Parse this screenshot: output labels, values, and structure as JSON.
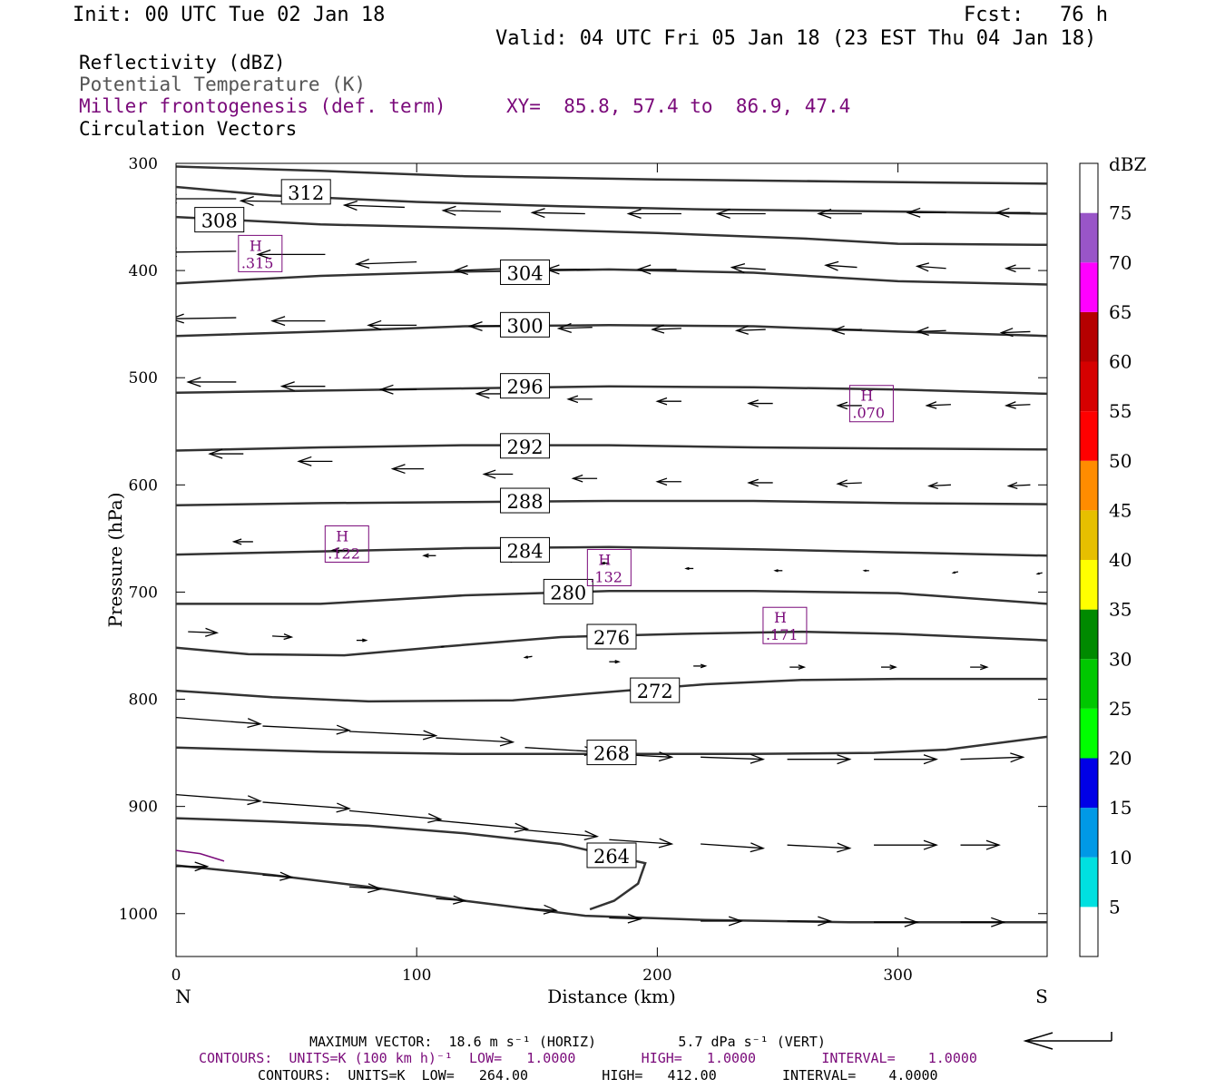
{
  "header": {
    "init": "Init: 00 UTC Tue 02 Jan 18",
    "fcst": "Fcst:   76 h",
    "valid": "Valid: 04 UTC Fri 05 Jan 18 (23 EST Thu 04 Jan 18)",
    "field_reflectivity": "Reflectivity (dBZ)",
    "field_theta": "Potential Temperature (K)",
    "field_frontogenesis": "Miller frontogenesis (def. term)",
    "xy": "XY=  85.8, 57.4 to  86.9, 47.4",
    "field_vectors": "Circulation Vectors"
  },
  "footer": {
    "max_vector": "MAXIMUM VECTOR:  18.6 m s⁻¹ (HORIZ)          5.7 dPa s⁻¹ (VERT)",
    "contours_purple": "CONTOURS:  UNITS=K (100 km h)⁻¹  LOW=   1.0000        HIGH=   1.0000        INTERVAL=    1.0000",
    "contours_black": "CONTOURS:  UNITS=K  LOW=   264.00         HIGH=   412.00        INTERVAL=    4.0000"
  },
  "colors": {
    "contour": "#333333",
    "frontogenesis": "#7a0a7a",
    "axis": "#000000"
  },
  "colorbar": {
    "unit": "dBZ",
    "levels": [
      5,
      10,
      15,
      20,
      25,
      30,
      35,
      40,
      45,
      50,
      55,
      60,
      65,
      70,
      75
    ],
    "colors": [
      "#ffffff",
      "#00e0e0",
      "#0099e6",
      "#0000e6",
      "#00ff00",
      "#00c800",
      "#008a00",
      "#ffff00",
      "#e6bf00",
      "#ff8c00",
      "#ff0000",
      "#d60000",
      "#b50000",
      "#ff00ff",
      "#9955c8",
      "#ffffff"
    ]
  },
  "chart_data": {
    "type": "cross-section",
    "xlabel": "Distance (km)",
    "ylabel": "Pressure (hPa)",
    "xlim": [
      0,
      362
    ],
    "ylim": [
      1040,
      300
    ],
    "x_ticks": [
      "0",
      "100",
      "200",
      "300"
    ],
    "y_ticks": [
      "300",
      "400",
      "500",
      "600",
      "700",
      "800",
      "900",
      "1000"
    ],
    "x_end_labels": {
      "left": "N",
      "right": "S"
    },
    "theta_contours": [
      {
        "label": "312",
        "label_at": [
          54,
          327
        ],
        "points": [
          [
            0,
            303
          ],
          [
            60,
            307
          ],
          [
            120,
            312
          ],
          [
            200,
            315
          ],
          [
            280,
            317
          ],
          [
            362,
            319
          ]
        ]
      },
      {
        "label": "308",
        "label_at": [
          18,
          353
        ],
        "points": [
          [
            0,
            322
          ],
          [
            40,
            330
          ],
          [
            100,
            336
          ],
          [
            160,
            340
          ],
          [
            220,
            343
          ],
          [
            300,
            345
          ],
          [
            362,
            347
          ]
        ]
      },
      {
        "label": "",
        "label_at": null,
        "points": [
          [
            0,
            350
          ],
          [
            60,
            357
          ],
          [
            140,
            361
          ],
          [
            200,
            365
          ],
          [
            260,
            370
          ],
          [
            300,
            375
          ],
          [
            362,
            376
          ]
        ]
      },
      {
        "label": "304",
        "label_at": [
          145,
          402
        ],
        "points": [
          [
            0,
            412
          ],
          [
            60,
            405
          ],
          [
            120,
            401
          ],
          [
            180,
            399
          ],
          [
            240,
            402
          ],
          [
            300,
            410
          ],
          [
            362,
            413
          ]
        ]
      },
      {
        "label": "300",
        "label_at": [
          145,
          451
        ],
        "points": [
          [
            0,
            461
          ],
          [
            60,
            457
          ],
          [
            120,
            452
          ],
          [
            180,
            451
          ],
          [
            240,
            452
          ],
          [
            300,
            457
          ],
          [
            362,
            461
          ]
        ]
      },
      {
        "label": "296",
        "label_at": [
          145,
          508
        ],
        "points": [
          [
            0,
            514
          ],
          [
            60,
            512
          ],
          [
            120,
            510
          ],
          [
            180,
            508
          ],
          [
            240,
            509
          ],
          [
            300,
            511
          ],
          [
            362,
            515
          ]
        ]
      },
      {
        "label": "292",
        "label_at": [
          145,
          564
        ],
        "points": [
          [
            0,
            568
          ],
          [
            60,
            565
          ],
          [
            120,
            563
          ],
          [
            180,
            563
          ],
          [
            240,
            565
          ],
          [
            300,
            566
          ],
          [
            362,
            567
          ]
        ]
      },
      {
        "label": "288",
        "label_at": [
          145,
          615
        ],
        "points": [
          [
            0,
            619
          ],
          [
            60,
            617
          ],
          [
            120,
            616
          ],
          [
            180,
            615
          ],
          [
            240,
            615
          ],
          [
            300,
            617
          ],
          [
            362,
            618
          ]
        ]
      },
      {
        "label": "284",
        "label_at": [
          145,
          661
        ],
        "points": [
          [
            0,
            665
          ],
          [
            60,
            662
          ],
          [
            120,
            659
          ],
          [
            180,
            658
          ],
          [
            240,
            660
          ],
          [
            300,
            663
          ],
          [
            362,
            666
          ]
        ]
      },
      {
        "label": "280",
        "label_at": [
          163,
          700
        ],
        "points": [
          [
            0,
            711
          ],
          [
            60,
            711
          ],
          [
            120,
            703
          ],
          [
            180,
            699
          ],
          [
            240,
            699
          ],
          [
            300,
            701
          ],
          [
            362,
            711
          ]
        ]
      },
      {
        "label": "276",
        "label_at": [
          181,
          742
        ],
        "points": [
          [
            0,
            752
          ],
          [
            30,
            758
          ],
          [
            70,
            759
          ],
          [
            110,
            751
          ],
          [
            160,
            742
          ],
          [
            210,
            739
          ],
          [
            260,
            737
          ],
          [
            300,
            739
          ],
          [
            362,
            745
          ]
        ]
      },
      {
        "label": "272",
        "label_at": [
          199,
          792
        ],
        "points": [
          [
            0,
            792
          ],
          [
            40,
            798
          ],
          [
            80,
            802
          ],
          [
            140,
            801
          ],
          [
            170,
            795
          ],
          [
            220,
            786
          ],
          [
            260,
            782
          ],
          [
            300,
            781
          ],
          [
            362,
            781
          ]
        ]
      },
      {
        "label": "268",
        "label_at": [
          181,
          850
        ],
        "points": [
          [
            0,
            845
          ],
          [
            60,
            849
          ],
          [
            120,
            851
          ],
          [
            180,
            851
          ],
          [
            240,
            851
          ],
          [
            290,
            850
          ],
          [
            320,
            847
          ],
          [
            362,
            835
          ]
        ]
      },
      {
        "label": "264",
        "label_at": [
          181,
          946
        ],
        "points": [
          [
            0,
            911
          ],
          [
            40,
            914
          ],
          [
            80,
            918
          ],
          [
            120,
            925
          ],
          [
            160,
            935
          ],
          [
            181,
            946
          ],
          [
            195,
            953
          ],
          [
            192,
            972
          ],
          [
            182,
            988
          ],
          [
            172,
            996
          ]
        ]
      },
      {
        "label": "",
        "label_at": null,
        "points": [
          [
            0,
            955
          ],
          [
            40,
            964
          ],
          [
            80,
            975
          ],
          [
            120,
            988
          ],
          [
            170,
            1002
          ],
          [
            220,
            1006
          ],
          [
            280,
            1008
          ],
          [
            362,
            1008
          ]
        ]
      }
    ],
    "frontogenesis_maxima": [
      {
        "label": "H",
        "value": ".315",
        "x": 35,
        "p": 385
      },
      {
        "label": "H",
        "value": ".070",
        "x": 289,
        "p": 525
      },
      {
        "label": "H",
        "value": ".122",
        "x": 71,
        "p": 656
      },
      {
        "label": "H",
        "value": ".132",
        "x": 180,
        "p": 678
      },
      {
        "label": "H",
        "value": ".171",
        "x": 253,
        "p": 732
      }
    ],
    "frontogenesis_contours": [
      {
        "points": [
          [
            0,
            941
          ],
          [
            10,
            944
          ],
          [
            20,
            951
          ]
        ]
      }
    ],
    "circulation_vectors": [
      {
        "x": 25,
        "p": 333,
        "dx": -30,
        "dp": 0
      },
      {
        "x": 55,
        "p": 336,
        "dx": -28,
        "dp": -1
      },
      {
        "x": 95,
        "p": 341,
        "dx": -25,
        "dp": -2
      },
      {
        "x": 135,
        "p": 345,
        "dx": -24,
        "dp": -1
      },
      {
        "x": 170,
        "p": 347,
        "dx": -22,
        "dp": -1
      },
      {
        "x": 210,
        "p": 347,
        "dx": -22,
        "dp": 0
      },
      {
        "x": 245,
        "p": 347,
        "dx": -20,
        "dp": 0
      },
      {
        "x": 285,
        "p": 347,
        "dx": -18,
        "dp": 0
      },
      {
        "x": 320,
        "p": 346,
        "dx": -16,
        "dp": 0
      },
      {
        "x": 355,
        "p": 346,
        "dx": -14,
        "dp": 0
      },
      {
        "x": 25,
        "p": 382,
        "dx": -30,
        "dp": 1
      },
      {
        "x": 62,
        "p": 385,
        "dx": -28,
        "dp": 0
      },
      {
        "x": 100,
        "p": 392,
        "dx": -25,
        "dp": 2
      },
      {
        "x": 138,
        "p": 398,
        "dx": -22,
        "dp": 2
      },
      {
        "x": 172,
        "p": 399,
        "dx": -18,
        "dp": 0
      },
      {
        "x": 208,
        "p": 399,
        "dx": -16,
        "dp": 0
      },
      {
        "x": 245,
        "p": 399,
        "dx": -14,
        "dp": -2
      },
      {
        "x": 283,
        "p": 397,
        "dx": -13,
        "dp": -2
      },
      {
        "x": 320,
        "p": 398,
        "dx": -12,
        "dp": -2
      },
      {
        "x": 355,
        "p": 398,
        "dx": -10,
        "dp": 0
      },
      {
        "x": 25,
        "p": 444,
        "dx": -27,
        "dp": 1
      },
      {
        "x": 62,
        "p": 447,
        "dx": -22,
        "dp": 0
      },
      {
        "x": 100,
        "p": 451,
        "dx": -20,
        "dp": 0
      },
      {
        "x": 138,
        "p": 452,
        "dx": -16,
        "dp": 0
      },
      {
        "x": 173,
        "p": 453,
        "dx": -14,
        "dp": 1
      },
      {
        "x": 210,
        "p": 454,
        "dx": -12,
        "dp": 1
      },
      {
        "x": 245,
        "p": 455,
        "dx": -12,
        "dp": 1
      },
      {
        "x": 285,
        "p": 455,
        "dx": -12,
        "dp": 1
      },
      {
        "x": 320,
        "p": 456,
        "dx": -12,
        "dp": 1
      },
      {
        "x": 355,
        "p": 457,
        "dx": -12,
        "dp": 1
      },
      {
        "x": 25,
        "p": 504,
        "dx": -20,
        "dp": 0
      },
      {
        "x": 62,
        "p": 508,
        "dx": -18,
        "dp": 0
      },
      {
        "x": 100,
        "p": 511,
        "dx": -15,
        "dp": 0
      },
      {
        "x": 138,
        "p": 515,
        "dx": -13,
        "dp": 0
      },
      {
        "x": 173,
        "p": 520,
        "dx": -10,
        "dp": 0
      },
      {
        "x": 210,
        "p": 522,
        "dx": -10,
        "dp": 0
      },
      {
        "x": 248,
        "p": 524,
        "dx": -10,
        "dp": 0
      },
      {
        "x": 285,
        "p": 526,
        "dx": -10,
        "dp": 0
      },
      {
        "x": 322,
        "p": 525,
        "dx": -10,
        "dp": 1
      },
      {
        "x": 355,
        "p": 525,
        "dx": -10,
        "dp": 1
      },
      {
        "x": 28,
        "p": 571,
        "dx": -14,
        "dp": 0
      },
      {
        "x": 65,
        "p": 578,
        "dx": -14,
        "dp": 0
      },
      {
        "x": 103,
        "p": 585,
        "dx": -13,
        "dp": 0
      },
      {
        "x": 140,
        "p": 590,
        "dx": -12,
        "dp": 0
      },
      {
        "x": 175,
        "p": 594,
        "dx": -10,
        "dp": 0
      },
      {
        "x": 210,
        "p": 597,
        "dx": -10,
        "dp": 0
      },
      {
        "x": 248,
        "p": 598,
        "dx": -10,
        "dp": 0
      },
      {
        "x": 285,
        "p": 598,
        "dx": -10,
        "dp": 1
      },
      {
        "x": 322,
        "p": 600,
        "dx": -9,
        "dp": 1
      },
      {
        "x": 355,
        "p": 600,
        "dx": -9,
        "dp": 1
      },
      {
        "x": 32,
        "p": 653,
        "dx": -8,
        "dp": 0
      },
      {
        "x": 72,
        "p": 661,
        "dx": -7,
        "dp": 0
      },
      {
        "x": 108,
        "p": 666,
        "dx": -5,
        "dp": 0
      },
      {
        "x": 142,
        "p": 671,
        "dx": -4,
        "dp": 0
      },
      {
        "x": 180,
        "p": 673,
        "dx": -3,
        "dp": 0
      },
      {
        "x": 215,
        "p": 678,
        "dx": -3,
        "dp": 0
      },
      {
        "x": 252,
        "p": 680,
        "dx": -3,
        "dp": 0
      },
      {
        "x": 288,
        "p": 680,
        "dx": -2,
        "dp": 0
      },
      {
        "x": 325,
        "p": 681,
        "dx": -2,
        "dp": 1
      },
      {
        "x": 360,
        "p": 682,
        "dx": -2,
        "dp": 1
      },
      {
        "x": 5,
        "p": 737,
        "dx": 12,
        "dp": 1
      },
      {
        "x": 40,
        "p": 741,
        "dx": 8,
        "dp": 1
      },
      {
        "x": 75,
        "p": 745,
        "dx": 4,
        "dp": 0
      },
      {
        "x": 110,
        "p": 751,
        "dx": 1,
        "dp": 0
      },
      {
        "x": 148,
        "p": 760,
        "dx": -3,
        "dp": 1
      },
      {
        "x": 180,
        "p": 765,
        "dx": 4,
        "dp": 0
      },
      {
        "x": 215,
        "p": 769,
        "dx": 5,
        "dp": 0
      },
      {
        "x": 255,
        "p": 770,
        "dx": 6,
        "dp": 0
      },
      {
        "x": 293,
        "p": 770,
        "dx": 6,
        "dp": 0
      },
      {
        "x": 330,
        "p": 770,
        "dx": 7,
        "dp": 0
      },
      {
        "x": 0,
        "p": 817,
        "dx": 35,
        "dp": 6
      },
      {
        "x": 36,
        "p": 825,
        "dx": 36,
        "dp": 4
      },
      {
        "x": 72,
        "p": 830,
        "dx": 36,
        "dp": 4
      },
      {
        "x": 108,
        "p": 836,
        "dx": 32,
        "dp": 4
      },
      {
        "x": 145,
        "p": 845,
        "dx": 30,
        "dp": 4
      },
      {
        "x": 180,
        "p": 851,
        "dx": 26,
        "dp": 3
      },
      {
        "x": 218,
        "p": 854,
        "dx": 26,
        "dp": 2
      },
      {
        "x": 254,
        "p": 856,
        "dx": 26,
        "dp": 0
      },
      {
        "x": 290,
        "p": 856,
        "dx": 26,
        "dp": 0
      },
      {
        "x": 326,
        "p": 856,
        "dx": 26,
        "dp": -2
      },
      {
        "x": 0,
        "p": 889,
        "dx": 35,
        "dp": 6
      },
      {
        "x": 36,
        "p": 896,
        "dx": 36,
        "dp": 6
      },
      {
        "x": 72,
        "p": 904,
        "dx": 38,
        "dp": 8
      },
      {
        "x": 108,
        "p": 913,
        "dx": 38,
        "dp": 8
      },
      {
        "x": 145,
        "p": 922,
        "dx": 30,
        "dp": 6
      },
      {
        "x": 180,
        "p": 931,
        "dx": 26,
        "dp": 4
      },
      {
        "x": 218,
        "p": 935,
        "dx": 26,
        "dp": 4
      },
      {
        "x": 254,
        "p": 936,
        "dx": 26,
        "dp": 3
      },
      {
        "x": 290,
        "p": 936,
        "dx": 26,
        "dp": 0
      },
      {
        "x": 326,
        "p": 936,
        "dx": 16,
        "dp": 0
      },
      {
        "x": 0,
        "p": 956,
        "dx": 13,
        "dp": 0
      },
      {
        "x": 36,
        "p": 964,
        "dx": 12,
        "dp": 2
      },
      {
        "x": 72,
        "p": 975,
        "dx": 13,
        "dp": 2
      },
      {
        "x": 108,
        "p": 986,
        "dx": 12,
        "dp": 2
      },
      {
        "x": 145,
        "p": 995,
        "dx": 13,
        "dp": 2
      },
      {
        "x": 180,
        "p": 1004,
        "dx": 13,
        "dp": 1
      },
      {
        "x": 218,
        "p": 1007,
        "dx": 17,
        "dp": 0
      },
      {
        "x": 254,
        "p": 1007,
        "dx": 18,
        "dp": 0
      },
      {
        "x": 290,
        "p": 1008,
        "dx": 18,
        "dp": 0
      },
      {
        "x": 326,
        "p": 1008,
        "dx": 18,
        "dp": 0
      }
    ]
  }
}
